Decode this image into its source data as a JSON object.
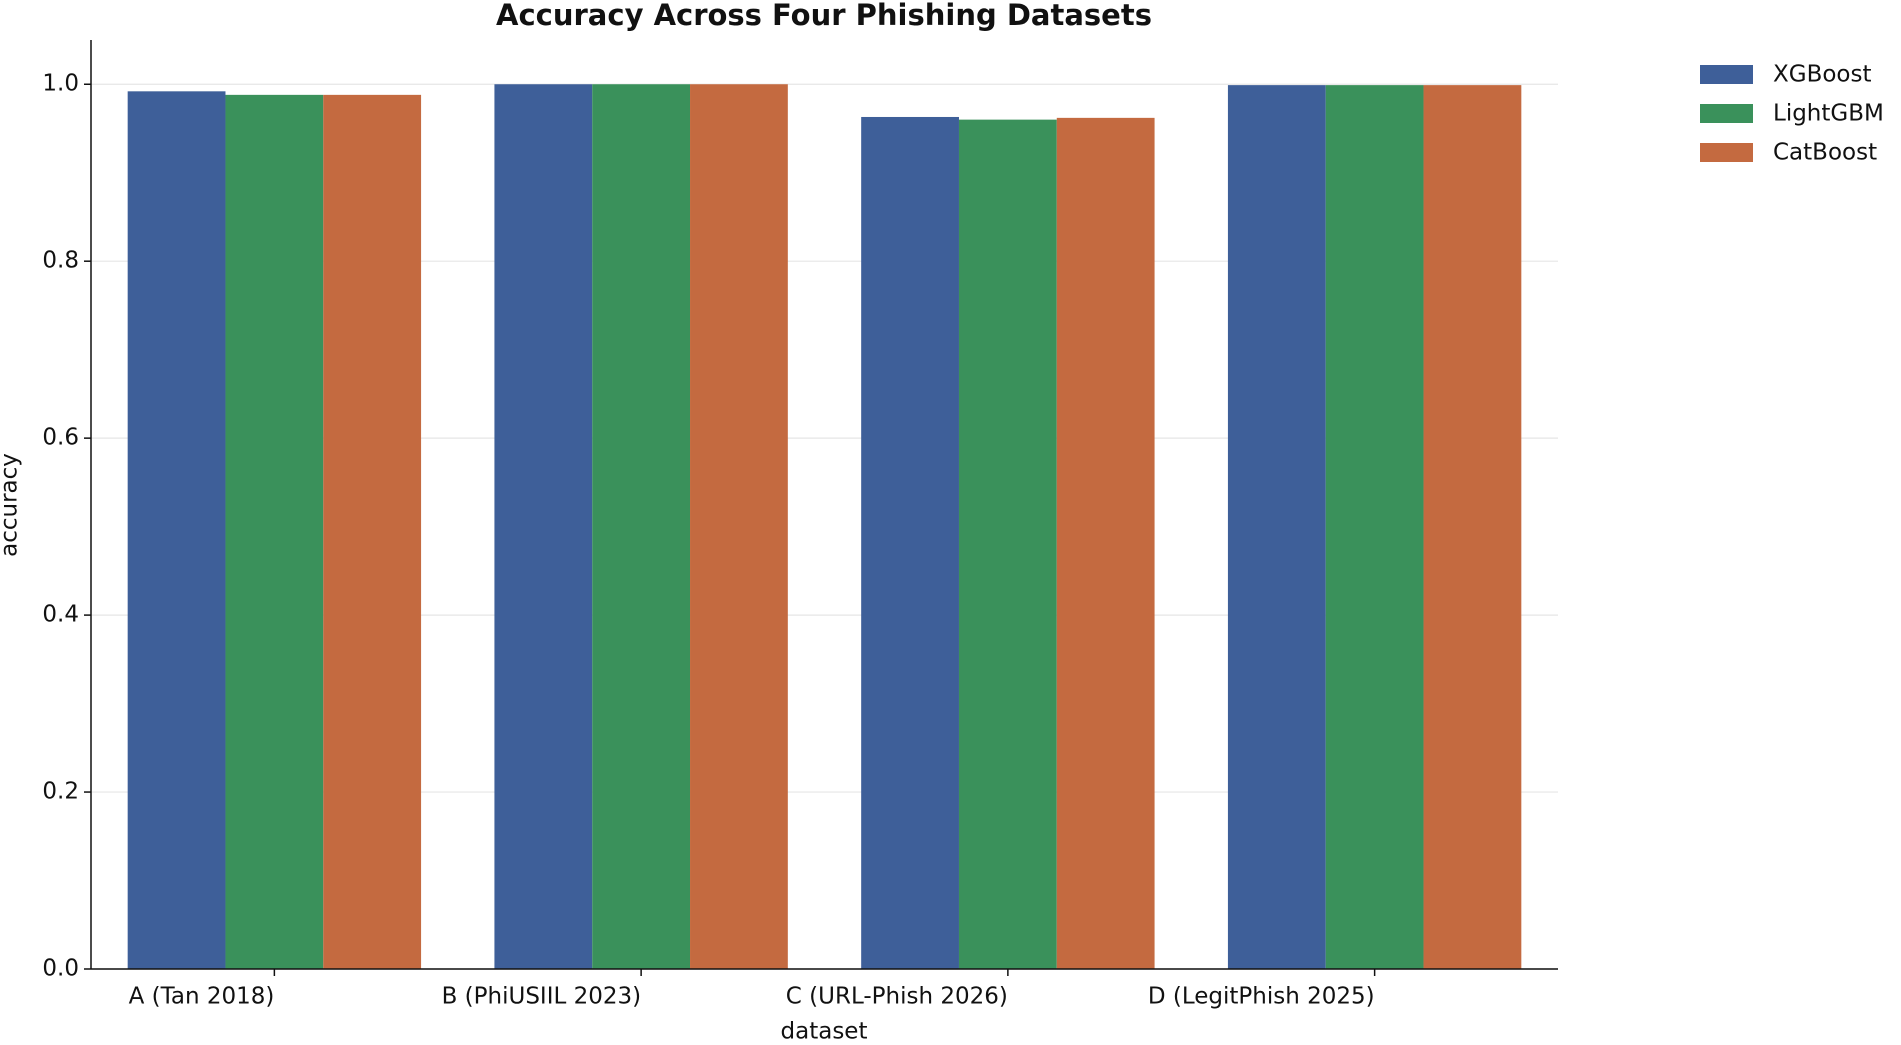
{
  "chart_data": {
    "type": "bar",
    "title": "Accuracy Across Four Phishing Datasets",
    "x_label": "dataset",
    "y_label": "accuracy",
    "categories": [
      "A (Tan 2018)",
      "B (PhiUSIIL 2023)",
      "C (URL-Phish 2026)",
      "D (LegitPhish 2025)"
    ],
    "series": [
      {
        "name": "XGBoost",
        "color": "#3e5f99",
        "values": [
          0.992,
          1.0,
          0.963,
          0.999
        ]
      },
      {
        "name": "LightGBM",
        "color": "#3a915b",
        "values": [
          0.988,
          1.0,
          0.96,
          0.999
        ]
      },
      {
        "name": "CatBoost",
        "color": "#c46a40",
        "values": [
          0.988,
          1.0,
          0.962,
          0.999
        ]
      }
    ],
    "ylim": [
      0,
      1.05
    ],
    "yticks": [
      {
        "value": 0,
        "label": "0.0"
      },
      0.2,
      0.4,
      0.6,
      0.8,
      {
        "value": 1,
        "label": "1.0"
      }
    ],
    "grid": true,
    "legend": "upper right outside"
  }
}
